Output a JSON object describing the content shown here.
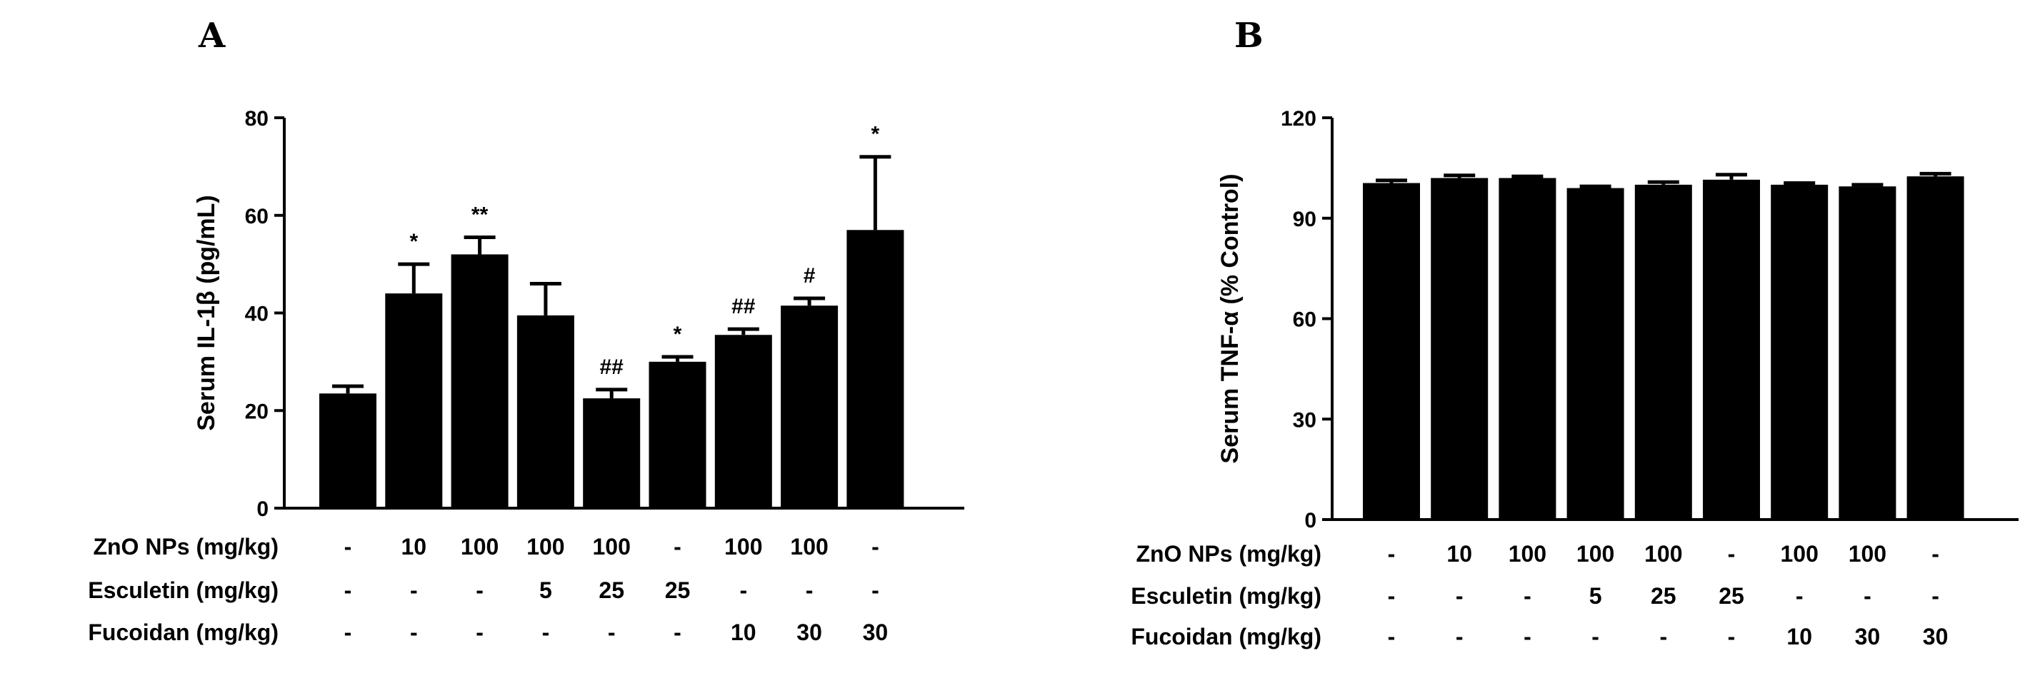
{
  "chart_data": [
    {
      "panel": "A",
      "type": "bar",
      "title": "",
      "ylabel": "Serum IL-1β (pg/mL)",
      "xlabel": "",
      "ylim": [
        0,
        80
      ],
      "yticks": [
        0,
        20,
        40,
        60,
        80
      ],
      "treatments": [
        {
          "label": "ZnO NPs (mg/kg)",
          "values": [
            "-",
            "10",
            "100",
            "100",
            "100",
            "-",
            "100",
            "100",
            "-"
          ]
        },
        {
          "label": "Esculetin (mg/kg)",
          "values": [
            "-",
            "-",
            "-",
            "5",
            "25",
            "25",
            "-",
            "-",
            "-"
          ]
        },
        {
          "label": "Fucoidan (mg/kg)",
          "values": [
            "-",
            "-",
            "-",
            "-",
            "-",
            "-",
            "10",
            "30",
            "30"
          ]
        }
      ],
      "values": [
        23.5,
        44,
        52,
        39.5,
        22.5,
        30,
        35.5,
        41.5,
        57
      ],
      "errors": [
        1.5,
        6,
        3.5,
        6.5,
        1.8,
        1,
        1.2,
        1.5,
        15
      ],
      "significance": [
        "",
        "*",
        "**",
        "",
        "##",
        "*",
        "##",
        "#",
        "*"
      ]
    },
    {
      "panel": "B",
      "type": "bar",
      "title": "",
      "ylabel": "Serum TNF-α (% Control)",
      "xlabel": "",
      "ylim": [
        0,
        120
      ],
      "yticks": [
        0,
        30,
        60,
        90,
        120
      ],
      "treatments": [
        {
          "label": "ZnO NPs (mg/kg)",
          "values": [
            "-",
            "10",
            "100",
            "100",
            "100",
            "-",
            "100",
            "100",
            "-"
          ]
        },
        {
          "label": "Esculetin (mg/kg)",
          "values": [
            "-",
            "-",
            "-",
            "5",
            "25",
            "25",
            "-",
            "-",
            "-"
          ]
        },
        {
          "label": "Fucoidan (mg/kg)",
          "values": [
            "-",
            "-",
            "-",
            "-",
            "-",
            "-",
            "10",
            "30",
            "30"
          ]
        }
      ],
      "values": [
        100.5,
        102,
        102,
        99,
        100,
        101.5,
        100,
        99.5,
        102.5
      ],
      "errors": [
        0.8,
        0.8,
        0.5,
        0.5,
        0.8,
        1.5,
        0.5,
        0.5,
        0.8
      ],
      "significance": [
        "",
        "",
        "",
        "",
        "",
        "",
        "",
        "",
        ""
      ]
    }
  ]
}
